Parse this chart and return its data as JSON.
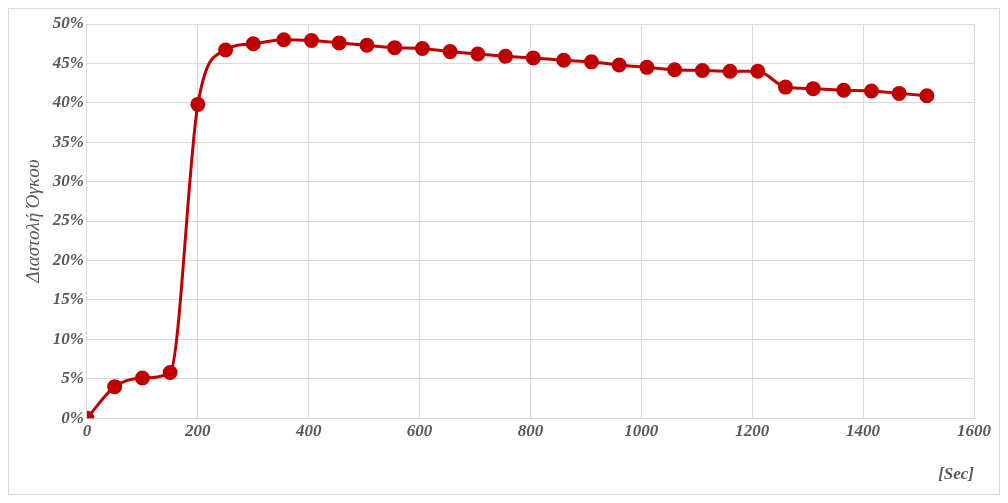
{
  "chart_data": {
    "type": "line",
    "xlabel": "[Sec]",
    "ylabel": "Διαστολή Όγκου",
    "xlim": [
      0,
      1600
    ],
    "xticks": [
      0,
      200,
      400,
      600,
      800,
      1000,
      1200,
      1400,
      1600
    ],
    "ylim": [
      0,
      50
    ],
    "yticks": [
      {
        "value": 0,
        "label": "0%"
      },
      {
        "value": 5,
        "label": "5%"
      },
      {
        "value": 10,
        "label": "10%"
      },
      {
        "value": 15,
        "label": "15%"
      },
      {
        "value": 20,
        "label": "20%"
      },
      {
        "value": 25,
        "label": "25%"
      },
      {
        "value": 30,
        "label": "30%"
      },
      {
        "value": 35,
        "label": "35%"
      },
      {
        "value": 40,
        "label": "40%"
      },
      {
        "value": 45,
        "label": "45%"
      },
      {
        "value": 50,
        "label": "50%"
      }
    ],
    "grid": true,
    "marker": "circle",
    "line_style": "solid",
    "x": [
      0,
      50,
      100,
      150,
      200,
      250,
      300,
      355,
      405,
      455,
      505,
      555,
      605,
      655,
      705,
      755,
      805,
      860,
      910,
      960,
      1010,
      1060,
      1110,
      1160,
      1210,
      1260,
      1310,
      1365,
      1415,
      1465,
      1515
    ],
    "series": [
      {
        "color": "#c00000",
        "values": [
          0,
          4.0,
          5.1,
          5.8,
          39.8,
          46.7,
          47.5,
          48.0,
          47.9,
          47.6,
          47.3,
          47.0,
          46.9,
          46.5,
          46.2,
          45.9,
          45.7,
          45.4,
          45.2,
          44.8,
          44.5,
          44.2,
          44.1,
          44.0,
          44.0,
          42.0,
          41.8,
          41.6,
          41.5,
          41.2,
          40.9
        ]
      }
    ]
  }
}
